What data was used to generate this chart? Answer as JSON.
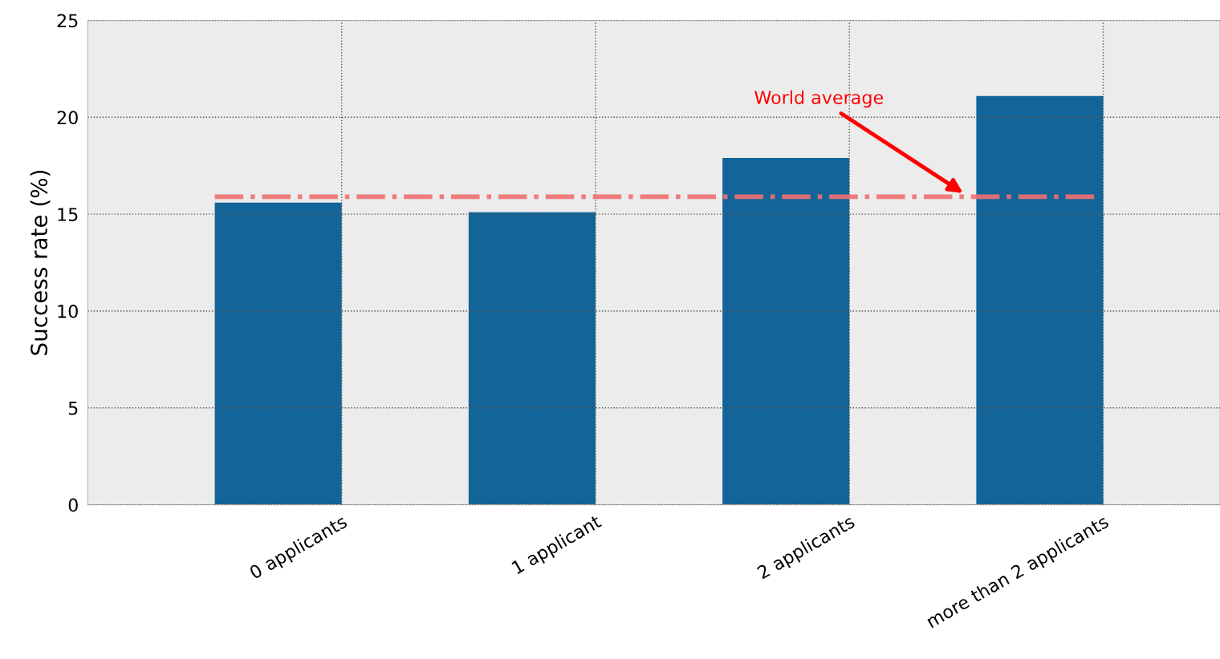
{
  "chart_data": {
    "type": "bar",
    "ylabel": "Success rate (%)",
    "categories": [
      "0 applicants",
      "1 applicant",
      "2 applicants",
      "more than 2 applicants"
    ],
    "values": [
      15.6,
      15.1,
      17.9,
      21.1
    ],
    "color": "#136599",
    "ylim": [
      0,
      25
    ],
    "yticks": [
      0,
      5,
      10,
      15,
      20,
      25
    ],
    "grid": true,
    "ref_lines": [
      {
        "axis": "y",
        "value": 15.9,
        "label": "World average",
        "color": "#f07070",
        "line_style": "dashdot"
      }
    ]
  }
}
